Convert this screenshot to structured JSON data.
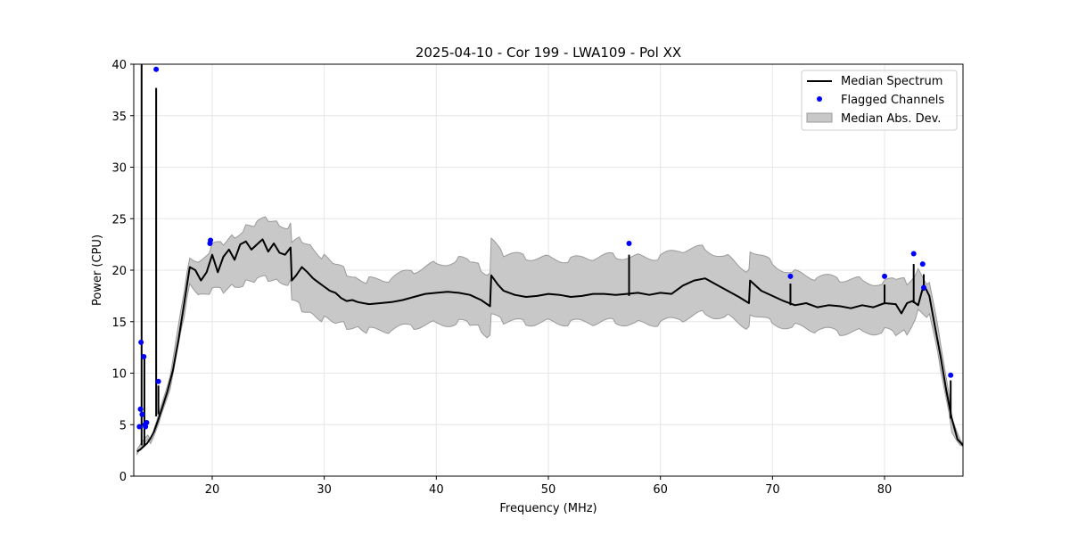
{
  "chart_data": {
    "type": "line",
    "title": "2025-04-10 - Cor 199 - LWA109 - Pol XX",
    "xlabel": "Frequency (MHz)",
    "ylabel": "Power (CPU)",
    "xlim": [
      13,
      87
    ],
    "ylim": [
      0,
      40
    ],
    "xticks": [
      20,
      30,
      40,
      50,
      60,
      70,
      80
    ],
    "yticks": [
      0,
      5,
      10,
      15,
      20,
      25,
      30,
      35,
      40
    ],
    "grid": true,
    "legend_position": "top-right",
    "colors": {
      "median": "#000000",
      "flagged": "#0000ff",
      "band_fill": "#c8c8c8",
      "band_edge": "#9a9a9a",
      "grid": "#e6e6e6"
    },
    "series": [
      {
        "name": "Median Spectrum",
        "kind": "line",
        "x": [
          13.3,
          13.6,
          13.9,
          14.2,
          14.5,
          14.8,
          15.1,
          15.5,
          16.0,
          16.5,
          17.0,
          17.5,
          18.0,
          18.5,
          19.0,
          19.5,
          20.0,
          20.5,
          21.0,
          21.5,
          22.0,
          22.5,
          23.0,
          23.5,
          24.0,
          24.5,
          25.0,
          25.5,
          26.0,
          26.5,
          27.0,
          27.1,
          27.5,
          28.0,
          28.5,
          29.0,
          29.5,
          30.0,
          30.5,
          31.0,
          31.5,
          32.0,
          32.5,
          33.0,
          33.5,
          34.0,
          35.0,
          36.0,
          37.0,
          38.0,
          39.0,
          40.0,
          41.0,
          42.0,
          43.0,
          44.0,
          44.8,
          44.9,
          45.5,
          46.0,
          47.0,
          48.0,
          49.0,
          50.0,
          51.0,
          52.0,
          53.0,
          54.0,
          55.0,
          56.0,
          57.0,
          58.0,
          59.0,
          60.0,
          61.0,
          62.0,
          63.0,
          64.0,
          65.0,
          66.0,
          67.0,
          67.9,
          68.0,
          69.0,
          70.0,
          71.0,
          72.0,
          73.0,
          74.0,
          75.0,
          76.0,
          77.0,
          78.0,
          79.0,
          80.0,
          81.0,
          81.5,
          82.0,
          82.5,
          83.0,
          83.5,
          84.0,
          84.5,
          85.0,
          85.5,
          86.0,
          86.5,
          87.0
        ],
        "y": [
          2.4,
          2.6,
          2.9,
          3.2,
          3.7,
          4.3,
          5.2,
          6.5,
          8.2,
          10.3,
          13.3,
          16.8,
          20.3,
          20.0,
          19.0,
          19.8,
          21.5,
          19.8,
          21.3,
          22.0,
          21.0,
          22.5,
          22.8,
          22.0,
          22.5,
          23.0,
          21.8,
          22.6,
          21.7,
          21.5,
          22.2,
          19.0,
          19.5,
          20.3,
          19.8,
          19.2,
          18.8,
          18.4,
          18.0,
          17.8,
          17.3,
          17.0,
          17.1,
          16.9,
          16.8,
          16.7,
          16.8,
          16.9,
          17.1,
          17.4,
          17.7,
          17.8,
          17.9,
          17.8,
          17.6,
          17.1,
          16.5,
          19.5,
          18.6,
          18.0,
          17.6,
          17.4,
          17.5,
          17.7,
          17.6,
          17.4,
          17.5,
          17.7,
          17.7,
          17.6,
          17.7,
          17.8,
          17.6,
          17.8,
          17.7,
          18.5,
          19.0,
          19.2,
          18.6,
          18.0,
          17.4,
          16.8,
          19.0,
          18.0,
          17.5,
          17.0,
          16.6,
          16.8,
          16.4,
          16.6,
          16.5,
          16.3,
          16.6,
          16.4,
          16.8,
          16.7,
          15.8,
          16.8,
          17.0,
          16.6,
          18.6,
          17.5,
          14.5,
          11.6,
          8.4,
          5.6,
          3.6,
          3.0
        ]
      },
      {
        "name": "Median Abs. Dev.",
        "kind": "band",
        "x": [
          13.3,
          14.5,
          15.5,
          16.5,
          17.5,
          18.0,
          19.0,
          20.0,
          21.0,
          22.0,
          23.0,
          24.0,
          25.0,
          26.0,
          27.0,
          27.1,
          28.0,
          29.0,
          30.0,
          31.0,
          32.0,
          33.0,
          34.0,
          36.0,
          38.0,
          40.0,
          42.0,
          43.0,
          44.0,
          44.8,
          44.9,
          46.0,
          48.0,
          50.0,
          52.0,
          54.0,
          56.0,
          58.0,
          60.0,
          62.0,
          64.0,
          66.0,
          67.9,
          68.0,
          70.0,
          72.0,
          74.0,
          76.0,
          78.0,
          80.0,
          81.0,
          82.0,
          83.0,
          84.0,
          85.0,
          86.0,
          87.0
        ],
        "upper": [
          2.6,
          3.9,
          7.0,
          11.0,
          18.0,
          21.5,
          20.8,
          22.3,
          22.6,
          23.4,
          24.2,
          24.5,
          25.0,
          24.5,
          24.3,
          22.5,
          23.0,
          22.2,
          21.2,
          20.5,
          19.8,
          19.2,
          19.0,
          19.2,
          20.0,
          20.6,
          21.0,
          20.9,
          20.2,
          19.6,
          22.8,
          21.5,
          21.3,
          21.2,
          21.0,
          21.2,
          21.4,
          21.3,
          21.3,
          22.0,
          22.1,
          21.2,
          20.0,
          22.1,
          20.6,
          19.7,
          19.3,
          19.2,
          19.0,
          18.7,
          19.2,
          18.9,
          20.0,
          18.5,
          13.0,
          6.0,
          3.1
        ],
        "lower": [
          2.2,
          3.5,
          6.0,
          9.6,
          15.6,
          19.0,
          17.5,
          18.0,
          18.0,
          18.6,
          18.8,
          19.0,
          19.2,
          19.0,
          18.8,
          17.0,
          16.3,
          15.8,
          15.2,
          14.8,
          14.6,
          14.5,
          14.1,
          14.2,
          14.6,
          14.8,
          14.9,
          14.8,
          14.3,
          13.5,
          15.5,
          15.0,
          14.9,
          15.0,
          14.9,
          14.9,
          15.0,
          14.8,
          14.9,
          15.3,
          15.8,
          15.4,
          14.5,
          16.0,
          14.8,
          14.5,
          14.2,
          14.0,
          14.0,
          14.1,
          13.8,
          14.0,
          16.0,
          15.5,
          10.5,
          4.5,
          2.9
        ]
      },
      {
        "name": "Flagged Channels",
        "kind": "scatter",
        "x": [
          13.5,
          13.6,
          13.65,
          13.75,
          13.9,
          14.0,
          14.05,
          14.15,
          15.0,
          15.2,
          19.8,
          19.85,
          57.2,
          71.6,
          80.0,
          82.6,
          83.4,
          83.5,
          85.9
        ],
        "y": [
          4.8,
          6.5,
          13.0,
          6.0,
          11.6,
          5.0,
          4.8,
          5.2,
          39.5,
          9.2,
          22.6,
          22.9,
          22.6,
          19.4,
          19.4,
          21.6,
          20.6,
          18.3,
          9.8
        ]
      }
    ],
    "spikes": [
      {
        "x": 13.7,
        "top": 40.0,
        "base": 3.0
      },
      {
        "x": 13.95,
        "top": 11.6,
        "base": 2.9
      },
      {
        "x": 15.0,
        "top": 37.7,
        "base": 5.8
      },
      {
        "x": 15.2,
        "top": 8.8,
        "base": 6.0
      },
      {
        "x": 57.2,
        "top": 21.5,
        "base": 17.5
      },
      {
        "x": 71.6,
        "top": 18.7,
        "base": 16.6
      },
      {
        "x": 80.0,
        "top": 18.6,
        "base": 16.7
      },
      {
        "x": 82.6,
        "top": 20.6,
        "base": 16.8
      },
      {
        "x": 83.5,
        "top": 19.6,
        "base": 18.0
      },
      {
        "x": 85.9,
        "top": 9.3,
        "base": 5.6
      }
    ],
    "legend": [
      {
        "label": "Median Spectrum",
        "symbol": "line"
      },
      {
        "label": "Flagged Channels",
        "symbol": "dot"
      },
      {
        "label": "Median Abs. Dev.",
        "symbol": "patch"
      }
    ]
  }
}
